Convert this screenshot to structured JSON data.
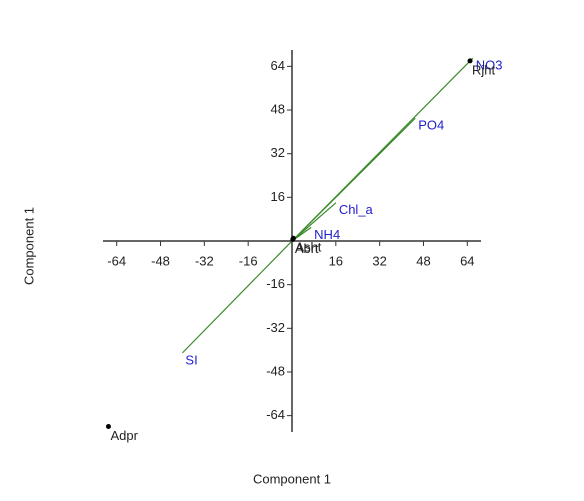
{
  "chart_data": {
    "type": "biplot",
    "x_label": "Component 1",
    "y_label": "Component 1",
    "xlim": [
      -69,
      69
    ],
    "ylim": [
      -70,
      70
    ],
    "xticks": [
      -64,
      -48,
      -32,
      -16,
      16,
      32,
      48,
      64
    ],
    "yticks": [
      -64,
      -48,
      -32,
      -16,
      16,
      32,
      48,
      64
    ],
    "points": {
      "color": "#000000",
      "labels": [
        "Rjht",
        "Adpr",
        "Asht",
        "Abrt"
      ],
      "x": [
        65,
        -67,
        0.5,
        0.3
      ],
      "y": [
        66,
        -68,
        1,
        0.6
      ]
    },
    "vectors": {
      "color": "#3a8a2a",
      "label_color": "#2222cc",
      "labels": [
        "NO3",
        "PO4",
        "Chl_a",
        "NH4",
        "SI"
      ],
      "x": [
        66,
        45,
        16,
        7,
        -40
      ],
      "y": [
        67,
        45,
        14,
        5,
        -41
      ]
    }
  }
}
